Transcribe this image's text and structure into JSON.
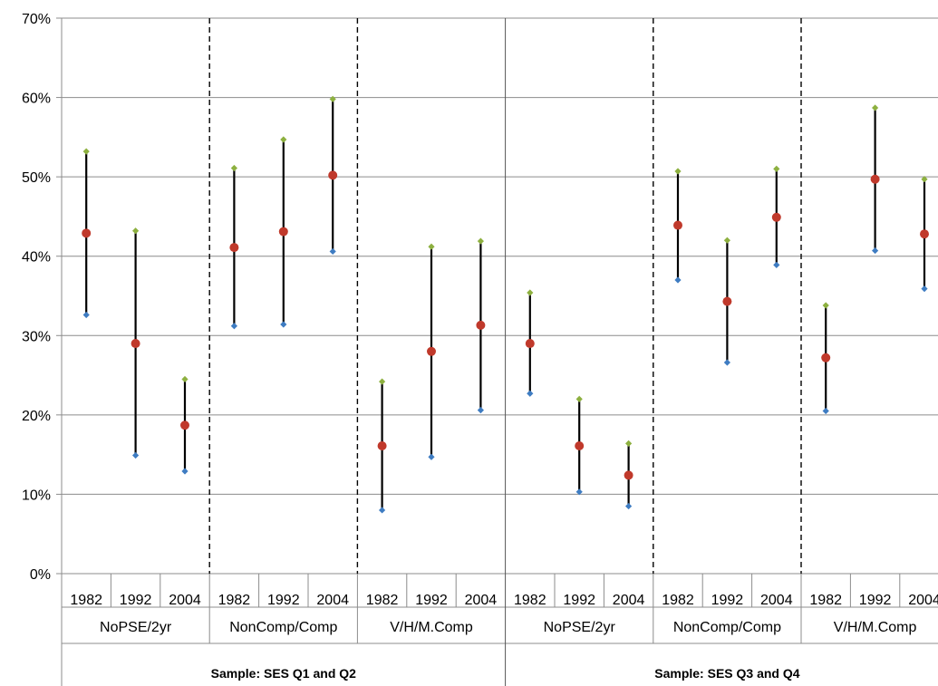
{
  "chart_data": {
    "type": "scatter",
    "y_unit": "%",
    "ylim": [
      0,
      70
    ],
    "y_ticks": [
      "0%",
      "10%",
      "20%",
      "30%",
      "40%",
      "50%",
      "60%",
      "70%"
    ],
    "grid": true,
    "categories": [
      "1982",
      "1992",
      "2004",
      "1982",
      "1992",
      "2004",
      "1982",
      "1992",
      "2004",
      "1982",
      "1992",
      "2004",
      "1982",
      "1992",
      "2004",
      "1982",
      "1992",
      "2004"
    ],
    "groups": [
      "NoPSE/2yr",
      "NonComp/Comp",
      "V/H/M.Comp",
      "NoPSE/2yr",
      "NonComp/Comp",
      "V/H/M.Comp"
    ],
    "samples": [
      "Sample: SES Q1 and Q2",
      "Sample: SES Q3 and Q4"
    ],
    "series": [
      {
        "role": "upper",
        "marker": "diamond",
        "color": "#8DB03F",
        "values": [
          53.2,
          43.2,
          24.5,
          51.1,
          54.7,
          59.8,
          24.2,
          41.2,
          41.9,
          35.4,
          22.0,
          16.4,
          50.7,
          42.0,
          51.0,
          33.8,
          58.7,
          49.7
        ]
      },
      {
        "role": "point",
        "marker": "circle",
        "color": "#C0392B",
        "values": [
          42.9,
          29.0,
          18.7,
          41.1,
          43.1,
          50.2,
          16.1,
          28.0,
          31.3,
          29.0,
          16.1,
          12.4,
          43.9,
          34.3,
          44.9,
          27.2,
          49.7,
          42.8
        ]
      },
      {
        "role": "lower",
        "marker": "diamond",
        "color": "#3E7CC2",
        "values": [
          32.6,
          14.9,
          12.9,
          31.2,
          31.4,
          40.6,
          8.0,
          14.7,
          20.6,
          22.7,
          10.3,
          8.5,
          37.0,
          26.6,
          38.9,
          20.5,
          40.7,
          35.9
        ]
      }
    ]
  }
}
